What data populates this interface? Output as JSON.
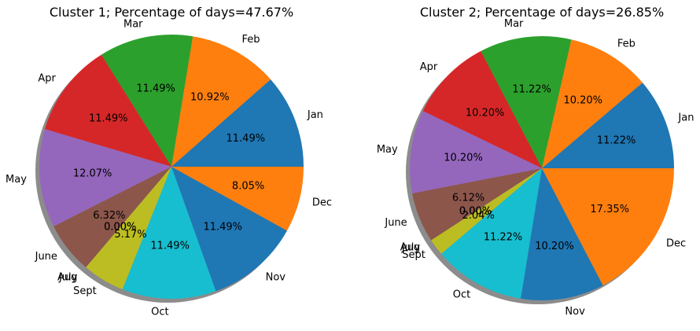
{
  "chart_data": [
    {
      "type": "pie",
      "title": "Cluster 1; Percentage of days=47.67%",
      "shadow": true,
      "categories": [
        "Jan",
        "Feb",
        "Mar",
        "Apr",
        "May",
        "June",
        "July",
        "Aug",
        "Sept",
        "Oct",
        "Nov",
        "Dec"
      ],
      "values": [
        11.49,
        10.92,
        11.49,
        11.49,
        12.07,
        6.32,
        0.0,
        0.0,
        5.17,
        11.49,
        11.49,
        8.05
      ],
      "value_labels": [
        "11.49%",
        "10.92%",
        "11.49%",
        "11.49%",
        "12.07%",
        "6.32%",
        "0.00%",
        "0.00%",
        "5.17%",
        "11.49%",
        "11.49%",
        "8.05%"
      ],
      "colors": [
        "#1f77b4",
        "#ff7f0e",
        "#2ca02c",
        "#d62728",
        "#9467bd",
        "#8c564b",
        "#e377c2",
        "#7f7f7f",
        "#bcbd22",
        "#17becf",
        "#1f77b4",
        "#ff7f0e"
      ]
    },
    {
      "type": "pie",
      "title": "Cluster 2; Percentage of days=26.85%",
      "shadow": true,
      "categories": [
        "Jan",
        "Feb",
        "Mar",
        "Apr",
        "May",
        "June",
        "July",
        "Aug",
        "Sept",
        "Oct",
        "Nov",
        "Dec"
      ],
      "values": [
        11.22,
        10.2,
        11.22,
        10.2,
        10.2,
        6.12,
        0.0,
        0.0,
        2.04,
        11.22,
        10.2,
        17.35
      ],
      "value_labels": [
        "11.22%",
        "10.20%",
        "11.22%",
        "10.20%",
        "10.20%",
        "6.12%",
        "0.00%",
        "0.00%",
        "2.04%",
        "11.22%",
        "10.20%",
        "17.35%"
      ],
      "colors": [
        "#1f77b4",
        "#ff7f0e",
        "#2ca02c",
        "#d62728",
        "#9467bd",
        "#8c564b",
        "#e377c2",
        "#7f7f7f",
        "#bcbd22",
        "#17becf",
        "#1f77b4",
        "#ff7f0e"
      ]
    }
  ]
}
